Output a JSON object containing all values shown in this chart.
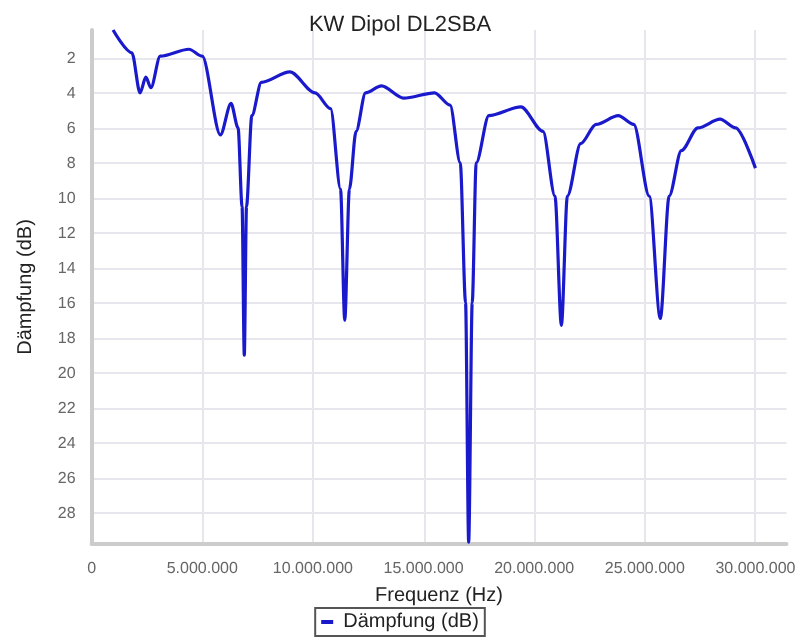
{
  "chart_data": {
    "type": "line",
    "title": "KW Dipol DL2SBA",
    "xlabel": "Frequenz (Hz)",
    "ylabel": "Dämpfung (dB)",
    "series": [
      {
        "name": "Dämpfung (dB)",
        "color": "#1a1acc",
        "x": [
          970000,
          1820000,
          2190000,
          2450000,
          2680000,
          3100000,
          4400000,
          5000000,
          5820000,
          6300000,
          6620000,
          6800000,
          6900000,
          7000000,
          7240000,
          7670000,
          8960000,
          10100000,
          10800000,
          11250000,
          11440000,
          11650000,
          11950000,
          12380000,
          13100000,
          14100000,
          15500000,
          16200000,
          16660000,
          16900000,
          17040000,
          17200000,
          17380000,
          17950000,
          19400000,
          20400000,
          20940000,
          21230000,
          21500000,
          22100000,
          22800000,
          23800000,
          24500000,
          25200000,
          25700000,
          26100000,
          26650000,
          27400000,
          28400000,
          29100000,
          30000000
        ],
        "values": [
          0.4,
          1.7,
          4.0,
          3.1,
          3.7,
          1.9,
          1.5,
          1.9,
          6.4,
          4.6,
          6.0,
          10.5,
          19,
          10.5,
          5.3,
          3.4,
          2.8,
          4.0,
          4.9,
          9.5,
          17,
          9.5,
          6.2,
          4.0,
          3.6,
          4.3,
          4.0,
          4.7,
          8.0,
          16,
          29.7,
          16,
          8.0,
          5.3,
          4.8,
          6.2,
          9.9,
          17.3,
          9.9,
          6.9,
          5.8,
          5.3,
          5.8,
          9.9,
          16.9,
          9.9,
          7.3,
          6.0,
          5.5,
          6.0,
          8.3
        ]
      }
    ],
    "xlim": [
      0,
      31400000
    ],
    "xticks": [
      0,
      {
        "value": 5000000,
        "label": "5.000.000"
      },
      {
        "value": 10000000,
        "label": "10.000.000"
      },
      {
        "value": 15000000,
        "label": "15.000.000"
      },
      {
        "value": 20000000,
        "label": "20.000.000"
      },
      {
        "value": 25000000,
        "label": "25.000.000"
      },
      {
        "value": 30000000,
        "label": "30.000.000"
      }
    ],
    "ylim": [
      29.8,
      0.4
    ],
    "yticks": [
      2,
      4,
      6,
      8,
      10,
      12,
      14,
      16,
      18,
      20,
      22,
      24,
      26,
      28
    ],
    "grid": true,
    "legend": "bottom",
    "marker": "none",
    "line_style": "solid"
  }
}
